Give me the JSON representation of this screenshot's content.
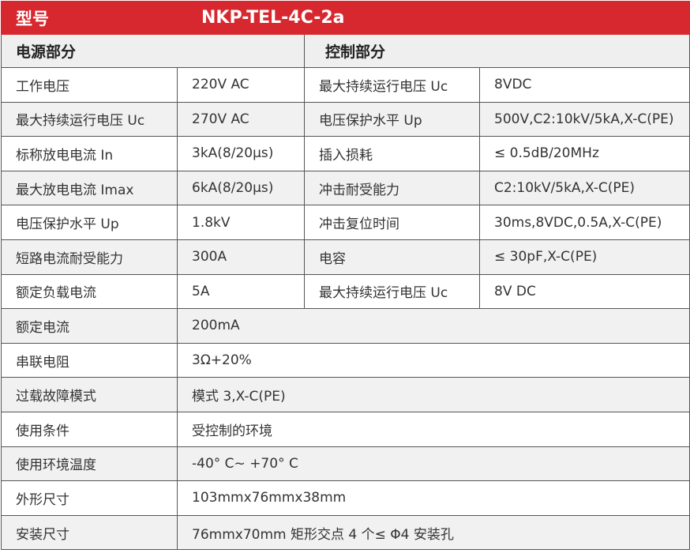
{
  "header": {
    "model_label": "型号",
    "model_value": "NKP-TEL-4C-2a"
  },
  "sections": {
    "power": "电源部分",
    "control": "控制部分"
  },
  "split_rows": [
    {
      "k1": "工作电压",
      "v1": "220V AC",
      "k2": "最大持续运行电压 Uc",
      "v2": "8VDC"
    },
    {
      "k1": "最大持续运行电压 Uc",
      "v1": "270V AC",
      "k2": "电压保护水平 Up",
      "v2": "500V,C2:10kV/5kA,X-C(PE)"
    },
    {
      "k1": "标称放电电流 In",
      "v1": "3kA(8/20μs)",
      "k2": "插入损耗",
      "v2": "≤ 0.5dB/20MHz"
    },
    {
      "k1": "最大放电电流 Imax",
      "v1": "6kA(8/20μs)",
      "k2": "冲击耐受能力",
      "v2": "C2:10kV/5kA,X-C(PE)"
    },
    {
      "k1": "电压保护水平 Up",
      "v1": "1.8kV",
      "k2": "冲击复位时间",
      "v2": "30ms,8VDC,0.5A,X-C(PE)"
    },
    {
      "k1": "短路电流耐受能力",
      "v1": "300A",
      "k2": "电容",
      "v2": "≤ 30pF,X-C(PE)"
    },
    {
      "k1": "额定负载电流",
      "v1": "5A",
      "k2": "最大持续运行电压 Uc",
      "v2": "8V DC"
    }
  ],
  "full_rows": [
    {
      "k": "额定电流",
      "v": "200mA"
    },
    {
      "k": "串联电阻",
      "v": "3Ω+20%"
    },
    {
      "k": "过载故障模式",
      "v": "模式 3,X-C(PE)"
    },
    {
      "k": "使用条件",
      "v": "受控制的环境"
    },
    {
      "k": "使用环境温度",
      "v": "-40° C~ +70° C"
    },
    {
      "k": "外形尺寸",
      "v": "103mmx76mmx38mm"
    },
    {
      "k": "安装尺寸",
      "v": "76mmx70mm 矩形交点  4 个≤ Φ4 安装孔"
    }
  ],
  "colors": {
    "header_red": "#d7282f",
    "section_gray": "#efefef",
    "alt_row": "#f1f1f1",
    "border": "#555555"
  }
}
